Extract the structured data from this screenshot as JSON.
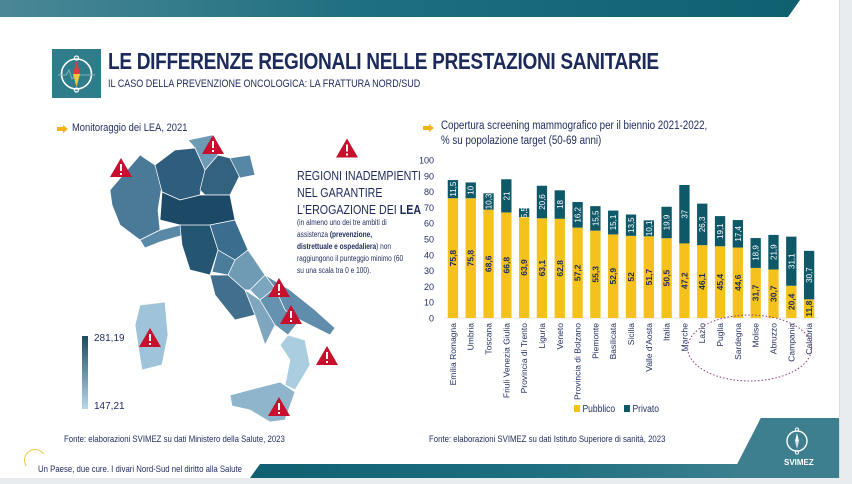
{
  "header": {
    "title": "LE DIFFERENZE REGIONALI NELLE PRESTAZIONI SANITARIE",
    "subtitle": "IL CASO DELLA PREVENZIONE ONCOLOGICA: LA FRATTURA NORD/SUD"
  },
  "left": {
    "section_label": "Monitoraggio dei LEA, 2021",
    "legend_max": "281,19",
    "legend_min": "147,21",
    "warning_heading_1": "REGIONI INADEMPIENTI",
    "warning_heading_2": "NEL GARANTIRE",
    "warning_heading_3a": "L'EROGAZIONE DEI ",
    "warning_heading_3b": "LEA",
    "note_1": "(in almeno uno dei tre ambiti di",
    "note_2a": "assistenza ",
    "note_2b": "(prevenzione,",
    "note_3a": "distrettuale e ospedaliera",
    "note_3b": ") non",
    "note_4": "raggiungono il punteggio minimo (60",
    "note_5": "su una scala tra 0 e 100).",
    "source": "Fonte: elaborazioni SVIMEZ su dati Ministero della Salute, 2023"
  },
  "right": {
    "title_1": "Copertura screening mammografico per il biennio 2021-2022,",
    "title_2": "% su popolazione target (50-69 anni)",
    "source": "Fonte: elaborazioni SVIMEZ su dati Istituto Superiore di sanità, 2023"
  },
  "footer": {
    "tagline": "Un Paese, due cure. I divari Nord-Sud nel diritto alla Salute",
    "brand": "SVIMEZ"
  },
  "colors": {
    "pubblico": "#F5C11C",
    "privato": "#0E5868",
    "navy": "#1d2b5c",
    "warning": "#c8102e"
  },
  "chart_data": {
    "type": "bar",
    "stacked": true,
    "title": "Copertura screening mammografico per il biennio 2021-2022, % su popolazione target (50-69 anni)",
    "ylim": [
      0,
      100
    ],
    "yticks": [
      "0",
      "10",
      "20",
      "30",
      "40",
      "50",
      "60",
      "70",
      "80",
      "90",
      "100"
    ],
    "categories": [
      "Emilia Romagna",
      "Umbria",
      "Toscana",
      "Friuli Venezia Giulia",
      "Provincia di Trento",
      "Liguria",
      "Veneto",
      "Provincia di Bolzano",
      "Piemonte",
      "Basilicata",
      "Sicilia",
      "Valle d'Aosta",
      "Italia",
      "Marche",
      "Lazio",
      "Puglia",
      "Sardegna",
      "Molise",
      "Abruzzo",
      "Campania",
      "Calabria"
    ],
    "series": [
      {
        "name": "Pubblico",
        "values": [
          75.8,
          75.8,
          68.6,
          66.8,
          63.9,
          63.1,
          62.8,
          57.2,
          55.3,
          52.9,
          52,
          51.7,
          50.5,
          47.2,
          46.1,
          45.4,
          44.6,
          31.7,
          30.7,
          20.4,
          11.8
        ],
        "labels": [
          "75,8",
          "75,8",
          "68,6",
          "66,8",
          "63,9",
          "63,1",
          "62,8",
          "57,2",
          "55,3",
          "52,9",
          "52",
          "51,7",
          "50,5",
          "47,2",
          "46,1",
          "45,4",
          "44,6",
          "31,7",
          "30,7",
          "20,4",
          "11,8"
        ]
      },
      {
        "name": "Privato",
        "values": [
          11.5,
          10,
          10.3,
          21,
          5.5,
          20.6,
          18,
          16.2,
          15.5,
          15.1,
          13.5,
          10.1,
          19.9,
          37,
          26.3,
          19.1,
          17.4,
          18.9,
          21.9,
          31.1,
          30.7
        ],
        "labels": [
          "11,5",
          "10",
          "10,3",
          "21",
          "5,5",
          "20,6",
          "18",
          "16,2",
          "15,5",
          "15,1",
          "13,5",
          "10,1",
          "19,9",
          "37",
          "26,3",
          "19,1",
          "17,4",
          "18,9",
          "21,9",
          "31,1",
          "30,7"
        ]
      }
    ],
    "legend": [
      "Pubblico",
      "Privato"
    ],
    "legend_position": "bottom",
    "annotation": "dotted ellipse highlighting southern regions"
  }
}
